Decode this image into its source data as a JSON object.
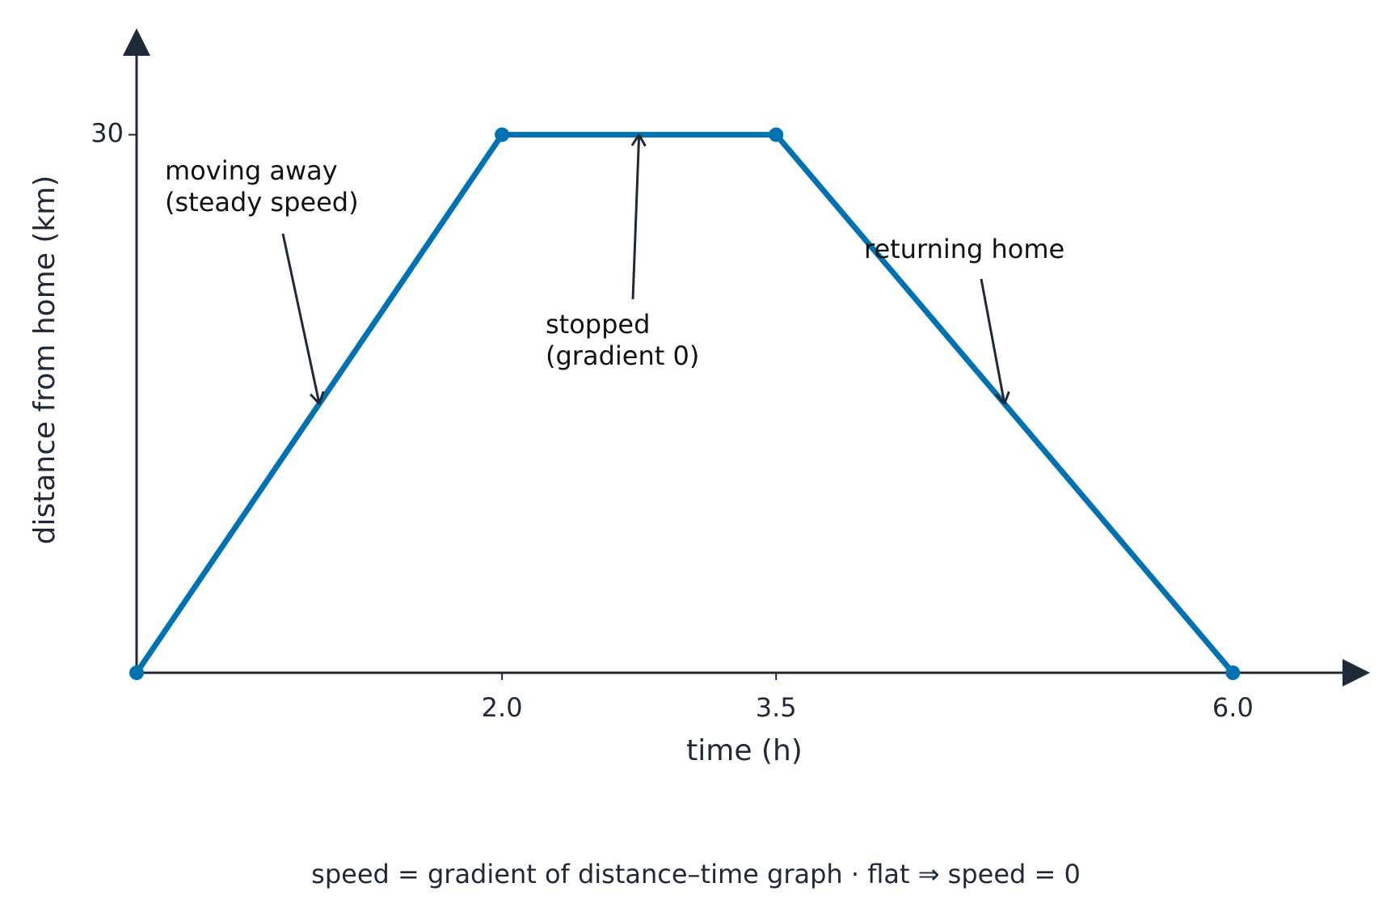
{
  "chart_data": {
    "type": "line",
    "x": [
      0,
      2.0,
      3.5,
      6.0
    ],
    "values": [
      0,
      30,
      30,
      0
    ],
    "color": "#0072b2",
    "xlim": [
      0,
      6.6
    ],
    "ylim": [
      0,
      34.4
    ],
    "xticks": [
      {
        "value": 2,
        "label": "2.0"
      },
      {
        "value": 3.5,
        "label": "3.5"
      },
      {
        "value": 6,
        "label": "6.0"
      }
    ],
    "yticks": [
      30
    ],
    "xlabel": "time (h)",
    "ylabel": "distance from home (km)",
    "annotations": [
      {
        "text": [
          "moving away",
          "(steady speed)"
        ],
        "x": 1.0,
        "y": 15
      },
      {
        "text": [
          "stopped",
          "(gradient 0)"
        ],
        "x": 2.75,
        "y": 30
      },
      {
        "text": [
          "returning home"
        ],
        "x": 4.75,
        "y": 15
      }
    ],
    "footnote": "speed  =  gradient of distance–time graph  ·  flat  ⇒  speed  = 0"
  }
}
